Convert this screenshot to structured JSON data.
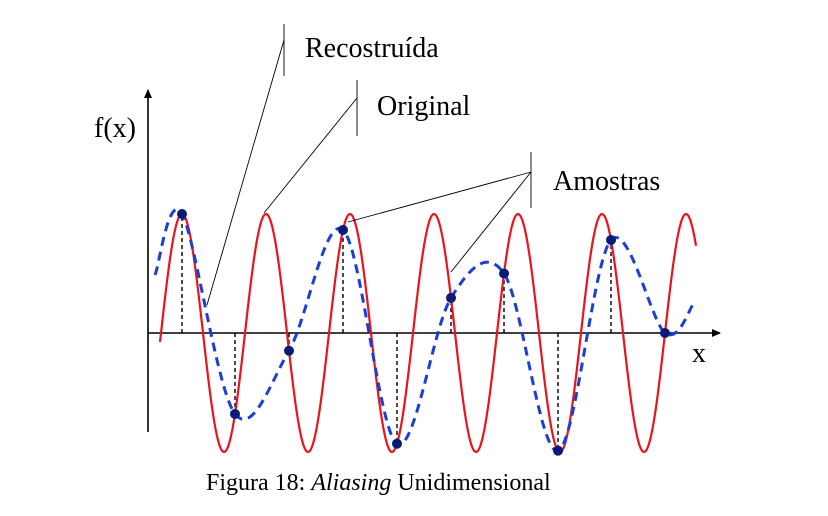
{
  "labels": {
    "y_axis": "f(x)",
    "x_axis": "x",
    "reconstructed": "Recostruída",
    "original": "Original",
    "samples": "Amostras"
  },
  "caption": {
    "prefix": "Figura 18: ",
    "italic": "Aliasing",
    "suffix": " Unidimensional"
  },
  "colors": {
    "original": "#e8141e",
    "reconstructed": "#1b3fd4",
    "samples": "#0a1a78",
    "axes": "#000000"
  }
}
